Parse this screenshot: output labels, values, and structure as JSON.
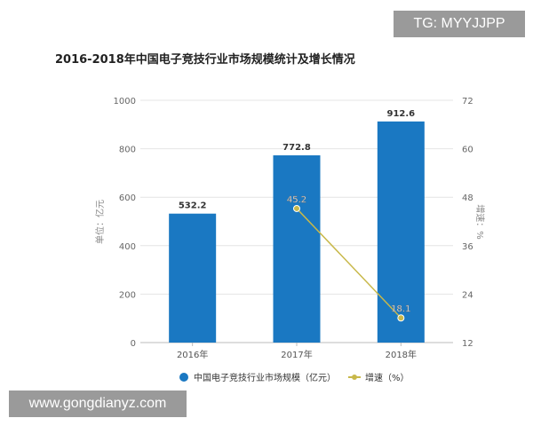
{
  "chart_data": {
    "type": "bar",
    "title": "2016-2018年中国电子竞技行业市场规模统计及增长情况",
    "categories": [
      "2016年",
      "2017年",
      "2018年"
    ],
    "series": [
      {
        "name": "中国电子竞技行业市场规模（亿元）",
        "type": "bar",
        "axis": "left",
        "values": [
          532.2,
          772.8,
          912.6
        ],
        "color": "#1a78c2"
      },
      {
        "name": "增速（%）",
        "type": "line",
        "axis": "right",
        "values": [
          null,
          45.2,
          18.1
        ],
        "color": "#c8b84a"
      }
    ],
    "ylabel": "单位：亿元",
    "y2label": "增速：%",
    "ylim": [
      0,
      1000
    ],
    "yticks": [
      0,
      200,
      400,
      600,
      800,
      1000
    ],
    "y2lim": [
      12,
      72
    ],
    "y2ticks": [
      12,
      24,
      36,
      48,
      60,
      72
    ],
    "grid": true,
    "legend": "bottom"
  },
  "overlays": {
    "top_right": "TG: MYYJJPP",
    "bottom_left": "www.gongdianyz.com"
  }
}
